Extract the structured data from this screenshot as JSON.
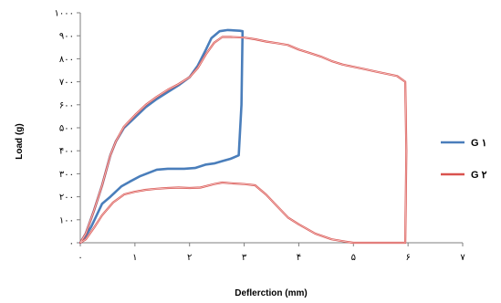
{
  "chart_data": {
    "type": "line",
    "title": "",
    "xlabel": "Deflerction (mm)",
    "ylabel": "Load (g)",
    "xlim": [
      0,
      7
    ],
    "ylim": [
      0,
      1000
    ],
    "x_ticks": [
      0,
      1,
      2,
      3,
      4,
      5,
      6,
      7
    ],
    "x_tick_labels": [
      "۰",
      "۱",
      "۲",
      "۳",
      "۴",
      "۵",
      "۶",
      "۷"
    ],
    "y_ticks": [
      0,
      100,
      200,
      300,
      400,
      500,
      600,
      700,
      800,
      900,
      1000
    ],
    "y_tick_labels": [
      "۰",
      "۱۰۰",
      "۲۰۰",
      "۳۰۰",
      "۴۰۰",
      "۵۰۰",
      "۶۰۰",
      "۷۰۰",
      "۸۰۰",
      "۹۰۰",
      "۱۰۰۰"
    ],
    "grid": false,
    "legend_position": "right",
    "series": [
      {
        "name": "G ۱",
        "color": "#4a7ebb",
        "points": [
          [
            0,
            0
          ],
          [
            0.1,
            40
          ],
          [
            0.25,
            140
          ],
          [
            0.4,
            250
          ],
          [
            0.55,
            380
          ],
          [
            0.65,
            440
          ],
          [
            0.8,
            500
          ],
          [
            1.0,
            545
          ],
          [
            1.2,
            590
          ],
          [
            1.4,
            625
          ],
          [
            1.6,
            655
          ],
          [
            1.8,
            685
          ],
          [
            2.0,
            720
          ],
          [
            2.15,
            770
          ],
          [
            2.3,
            840
          ],
          [
            2.4,
            890
          ],
          [
            2.55,
            920
          ],
          [
            2.7,
            925
          ],
          [
            2.92,
            922
          ],
          [
            2.97,
            920
          ],
          [
            2.95,
            600
          ],
          [
            2.9,
            380
          ],
          [
            2.75,
            365
          ],
          [
            2.6,
            355
          ],
          [
            2.45,
            345
          ],
          [
            2.3,
            340
          ],
          [
            2.1,
            325
          ],
          [
            1.9,
            322
          ],
          [
            1.6,
            322
          ],
          [
            1.4,
            318
          ],
          [
            1.1,
            290
          ],
          [
            0.9,
            265
          ],
          [
            0.75,
            245
          ],
          [
            0.55,
            200
          ],
          [
            0.4,
            170
          ],
          [
            0.2,
            70
          ],
          [
            0.05,
            10
          ],
          [
            0,
            0
          ]
        ]
      },
      {
        "name": "G ۲",
        "color": "#d9534f",
        "points": [
          [
            0,
            0
          ],
          [
            0.1,
            40
          ],
          [
            0.25,
            140
          ],
          [
            0.4,
            250
          ],
          [
            0.55,
            380
          ],
          [
            0.65,
            440
          ],
          [
            0.8,
            505
          ],
          [
            1.0,
            555
          ],
          [
            1.2,
            600
          ],
          [
            1.4,
            635
          ],
          [
            1.6,
            665
          ],
          [
            1.8,
            690
          ],
          [
            2.0,
            720
          ],
          [
            2.15,
            760
          ],
          [
            2.3,
            820
          ],
          [
            2.45,
            870
          ],
          [
            2.6,
            895
          ],
          [
            2.75,
            895
          ],
          [
            3.0,
            892
          ],
          [
            3.2,
            885
          ],
          [
            3.4,
            875
          ],
          [
            3.6,
            868
          ],
          [
            3.8,
            860
          ],
          [
            4.0,
            840
          ],
          [
            4.2,
            825
          ],
          [
            4.4,
            810
          ],
          [
            4.6,
            790
          ],
          [
            4.8,
            775
          ],
          [
            5.0,
            765
          ],
          [
            5.2,
            755
          ],
          [
            5.4,
            745
          ],
          [
            5.6,
            735
          ],
          [
            5.8,
            725
          ],
          [
            5.95,
            700
          ],
          [
            5.97,
            400
          ],
          [
            5.95,
            0
          ],
          [
            5.5,
            0
          ],
          [
            5.0,
            0
          ],
          [
            4.85,
            5
          ],
          [
            4.6,
            15
          ],
          [
            4.3,
            40
          ],
          [
            4.0,
            80
          ],
          [
            3.8,
            110
          ],
          [
            3.6,
            160
          ],
          [
            3.4,
            210
          ],
          [
            3.2,
            250
          ],
          [
            3.0,
            255
          ],
          [
            2.8,
            258
          ],
          [
            2.6,
            262
          ],
          [
            2.45,
            255
          ],
          [
            2.2,
            240
          ],
          [
            2.0,
            238
          ],
          [
            1.8,
            240
          ],
          [
            1.6,
            238
          ],
          [
            1.4,
            235
          ],
          [
            1.2,
            230
          ],
          [
            1.0,
            222
          ],
          [
            0.8,
            210
          ],
          [
            0.6,
            175
          ],
          [
            0.4,
            120
          ],
          [
            0.25,
            65
          ],
          [
            0.1,
            15
          ],
          [
            0,
            0
          ]
        ]
      }
    ]
  }
}
